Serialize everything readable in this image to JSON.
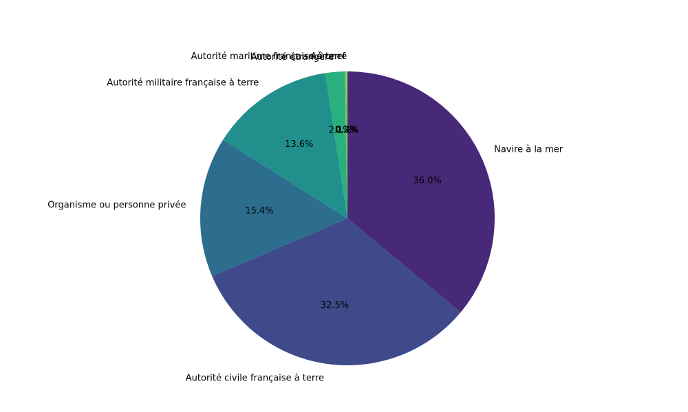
{
  "chart_data": {
    "type": "pie",
    "title": "",
    "start_angle_deg": 90,
    "direction": "clockwise",
    "slices": [
      {
        "label": "Navire à la mer",
        "value": 36.0,
        "pct_label": "36.0%",
        "color": "#482878"
      },
      {
        "label": "Autorité civile française à terre",
        "value": 32.5,
        "pct_label": "32.5%",
        "color": "#3e4a89"
      },
      {
        "label": "Organisme ou personne privée",
        "value": 15.4,
        "pct_label": "15.4%",
        "color": "#2d6e8e"
      },
      {
        "label": "Autorité militaire française à terre",
        "value": 13.6,
        "pct_label": "13.6%",
        "color": "#21908d"
      },
      {
        "label": "Autorité étrangère",
        "value": 2.1,
        "pct_label": "2.1%",
        "color": "#2ab07f"
      },
      {
        "label": "Aéronef",
        "value": 0.2,
        "pct_label": "0.2%",
        "color": "#5ec962"
      },
      {
        "label": "Autorité maritime française à terre",
        "value": 0.1,
        "pct_label": "0.1%",
        "color": "#b5de2b"
      }
    ]
  }
}
